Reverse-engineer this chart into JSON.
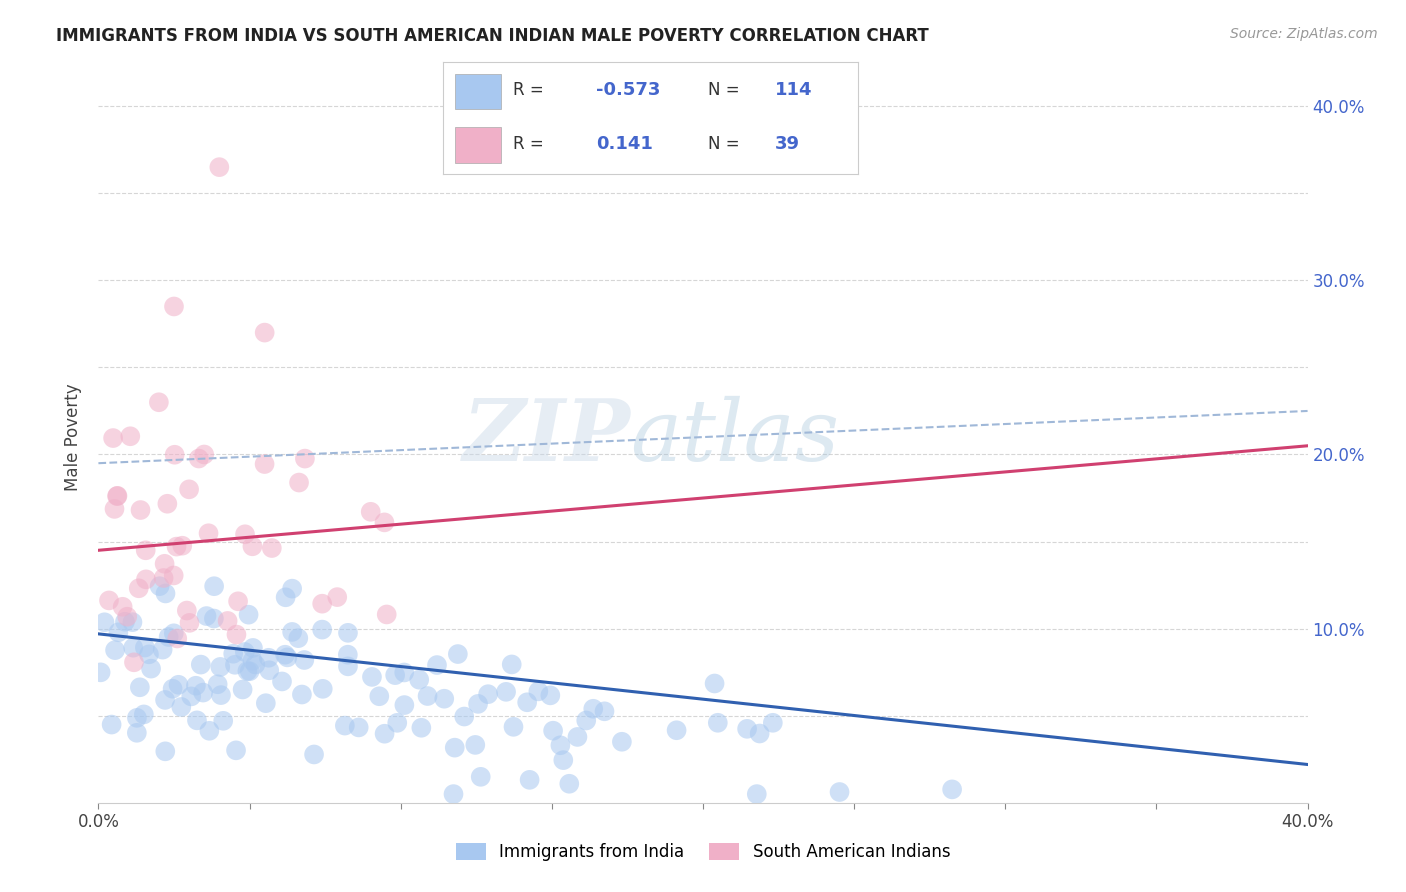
{
  "title": "IMMIGRANTS FROM INDIA VS SOUTH AMERICAN INDIAN MALE POVERTY CORRELATION CHART",
  "source": "Source: ZipAtlas.com",
  "ylabel": "Male Poverty",
  "legend_labels": [
    "Immigrants from India",
    "South American Indians"
  ],
  "blue_color": "#a8c8f0",
  "pink_color": "#f0b0c8",
  "blue_line_color": "#3060b0",
  "pink_line_color": "#d04070",
  "dash_line_color": "#a0b8d8",
  "xmin": 0.0,
  "xmax": 0.4,
  "ymin": 0.0,
  "ymax": 0.42,
  "x_ticks": [
    0.0,
    0.05,
    0.1,
    0.15,
    0.2,
    0.25,
    0.3,
    0.35,
    0.4
  ],
  "y_ticks": [
    0.0,
    0.05,
    0.1,
    0.15,
    0.2,
    0.25,
    0.3,
    0.35,
    0.4
  ],
  "y_tick_labels_right": [
    "",
    "",
    "10.0%",
    "",
    "20.0%",
    "",
    "30.0%",
    "",
    "40.0%"
  ],
  "watermark_zip": "ZIP",
  "watermark_atlas": "atlas",
  "background_color": "#ffffff",
  "grid_color": "#cccccc",
  "blue_trend_start": 0.097,
  "blue_trend_end": 0.022,
  "pink_trend_start": 0.145,
  "pink_trend_end": 0.205,
  "dash_trend_start": 0.195,
  "dash_trend_end": 0.225,
  "legend_r1": "-0.573",
  "legend_n1": "114",
  "legend_r2": "0.141",
  "legend_n2": "39",
  "label_color": "#4466cc",
  "rn_text_color": "#333333"
}
